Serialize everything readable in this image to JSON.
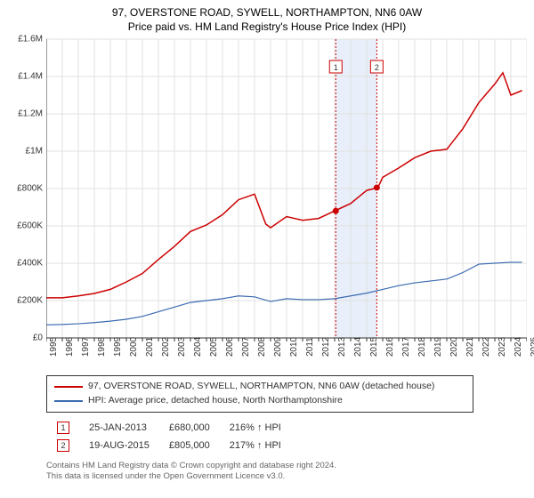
{
  "title_line1": "97, OVERSTONE ROAD, SYWELL, NORTHAMPTON, NN6 0AW",
  "title_line2": "Price paid vs. HM Land Registry's House Price Index (HPI)",
  "chart": {
    "type": "line",
    "background_color": "#ffffff",
    "grid_color": "#e0e0e0",
    "axis_color": "#333333",
    "x": {
      "min": 1995,
      "max": 2025,
      "tick_step": 1,
      "labels": [
        "1995",
        "1996",
        "1997",
        "1998",
        "1999",
        "2000",
        "2001",
        "2002",
        "2003",
        "2004",
        "2005",
        "2006",
        "2007",
        "2008",
        "2009",
        "2010",
        "2011",
        "2012",
        "2013",
        "2014",
        "2015",
        "2016",
        "2017",
        "2018",
        "2019",
        "2020",
        "2021",
        "2022",
        "2023",
        "2024",
        "2025"
      ]
    },
    "y": {
      "min": 0,
      "max": 1600000,
      "tick_step": 200000,
      "labels": [
        "£0",
        "£200K",
        "£400K",
        "£600K",
        "£800K",
        "£1M",
        "£1.2M",
        "£1.4M",
        "£1.6M"
      ]
    },
    "series": [
      {
        "name": "property_price",
        "label": "97, OVERSTONE ROAD, SYWELL, NORTHAMPTON, NN6 0AW (detached house)",
        "color": "#cc0000",
        "line_width": 1.5,
        "points": [
          [
            1995,
            215000
          ],
          [
            1996,
            215000
          ],
          [
            1997,
            225000
          ],
          [
            1998,
            238000
          ],
          [
            1999,
            260000
          ],
          [
            2000,
            300000
          ],
          [
            2001,
            345000
          ],
          [
            2002,
            420000
          ],
          [
            2003,
            490000
          ],
          [
            2004,
            570000
          ],
          [
            2005,
            605000
          ],
          [
            2006,
            660000
          ],
          [
            2007,
            740000
          ],
          [
            2008,
            770000
          ],
          [
            2008.7,
            610000
          ],
          [
            2009,
            590000
          ],
          [
            2010,
            650000
          ],
          [
            2011,
            630000
          ],
          [
            2012,
            640000
          ],
          [
            2013,
            680000
          ],
          [
            2014,
            720000
          ],
          [
            2015,
            790000
          ],
          [
            2015.7,
            805000
          ],
          [
            2016,
            860000
          ],
          [
            2017,
            910000
          ],
          [
            2018,
            965000
          ],
          [
            2019,
            1000000
          ],
          [
            2020,
            1010000
          ],
          [
            2021,
            1120000
          ],
          [
            2022,
            1260000
          ],
          [
            2023,
            1360000
          ],
          [
            2023.5,
            1420000
          ],
          [
            2024,
            1300000
          ],
          [
            2024.7,
            1325000
          ]
        ]
      },
      {
        "name": "hpi",
        "label": "HPI: Average price, detached house, North Northamptonshire",
        "color": "#3a6bb0",
        "line_width": 1.2,
        "points": [
          [
            1995,
            70000
          ],
          [
            1996,
            72000
          ],
          [
            1997,
            76000
          ],
          [
            1998,
            82000
          ],
          [
            1999,
            90000
          ],
          [
            2000,
            100000
          ],
          [
            2001,
            115000
          ],
          [
            2002,
            140000
          ],
          [
            2003,
            165000
          ],
          [
            2004,
            190000
          ],
          [
            2005,
            200000
          ],
          [
            2006,
            210000
          ],
          [
            2007,
            225000
          ],
          [
            2008,
            220000
          ],
          [
            2009,
            195000
          ],
          [
            2010,
            210000
          ],
          [
            2011,
            205000
          ],
          [
            2012,
            205000
          ],
          [
            2013,
            210000
          ],
          [
            2014,
            225000
          ],
          [
            2015,
            240000
          ],
          [
            2016,
            260000
          ],
          [
            2017,
            280000
          ],
          [
            2018,
            295000
          ],
          [
            2019,
            305000
          ],
          [
            2020,
            315000
          ],
          [
            2021,
            350000
          ],
          [
            2022,
            395000
          ],
          [
            2023,
            400000
          ],
          [
            2024,
            405000
          ],
          [
            2024.7,
            405000
          ]
        ]
      }
    ],
    "sale_markers": [
      {
        "badge": "1",
        "x": 2013.07,
        "y": 680000,
        "band_end": 2015.63,
        "color": "#cc0000",
        "band_color": "#e8effa"
      },
      {
        "badge": "2",
        "x": 2015.63,
        "y": 805000,
        "color": "#cc0000"
      }
    ]
  },
  "legend": [
    {
      "color": "#cc0000",
      "text": "97, OVERSTONE ROAD, SYWELL, NORTHAMPTON, NN6 0AW (detached house)"
    },
    {
      "color": "#3a6bb0",
      "text": "HPI: Average price, detached house, North Northamptonshire"
    }
  ],
  "sales": [
    {
      "badge": "1",
      "badge_color": "#cc0000",
      "date": "25-JAN-2013",
      "price": "£680,000",
      "delta": "216% ↑ HPI"
    },
    {
      "badge": "2",
      "badge_color": "#cc0000",
      "date": "19-AUG-2015",
      "price": "£805,000",
      "delta": "217% ↑ HPI"
    }
  ],
  "footer_line1": "Contains HM Land Registry data © Crown copyright and database right 2024.",
  "footer_line2": "This data is licensed under the Open Government Licence v3.0."
}
